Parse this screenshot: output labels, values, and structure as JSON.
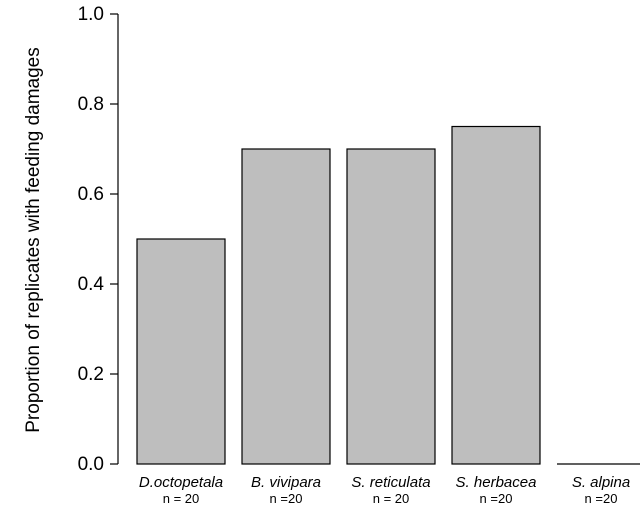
{
  "chart_data": {
    "type": "bar",
    "title": "",
    "xlabel": "",
    "ylabel": "Proportion of replicates with feeding damages",
    "ylim": [
      0,
      1.0
    ],
    "yticks": [
      "0.0",
      "0.2",
      "0.4",
      "0.6",
      "0.8",
      "1.0"
    ],
    "ytick_values": [
      0,
      0.2,
      0.4,
      0.6,
      0.8,
      1.0
    ],
    "categories": [
      "D.octopetala",
      "B. vivipara",
      "S. reticulata",
      "S. herbacea",
      "S. alpina"
    ],
    "sample_sizes": [
      "n = 20",
      "n =20",
      "n = 20",
      "n =20",
      "n =20"
    ],
    "values": [
      0.5,
      0.7,
      0.7,
      0.75,
      0.0
    ],
    "bar_color": "#bebebe",
    "grid": false
  }
}
